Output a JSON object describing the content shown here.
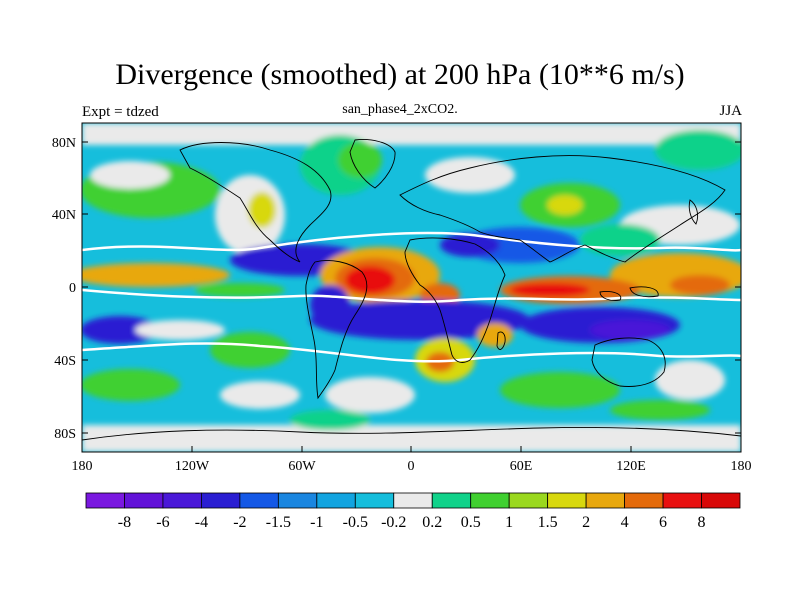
{
  "title": "Divergence (smoothed) at 200 hPa (10**6 m/s)",
  "left_label": "Expt = tdzed",
  "center_label": "san_phase4_2xCO2.",
  "right_label": "JJA",
  "lat_labels": [
    "80N",
    "40N",
    "0",
    "40S",
    "80S"
  ],
  "lon_labels": [
    "180",
    "120W",
    "60W",
    "0",
    "60E",
    "120E",
    "180"
  ],
  "colorbar": {
    "labels": [
      "-8",
      "-6",
      "-4",
      "-2",
      "-1.5",
      "-1",
      "-0.5",
      "-0.2",
      "0.2",
      "0.5",
      "1",
      "1.5",
      "2",
      "4",
      "6",
      "8"
    ],
    "colors": [
      "#7a18e0",
      "#6212d8",
      "#4a18d8",
      "#2a1ed2",
      "#1458e6",
      "#1a86e0",
      "#12a4e0",
      "#16bedc",
      "#eaeaea",
      "#10d28a",
      "#40d030",
      "#9ad81e",
      "#d8d80e",
      "#e8a80e",
      "#e46a0a",
      "#e81010",
      "#d80808"
    ]
  }
}
